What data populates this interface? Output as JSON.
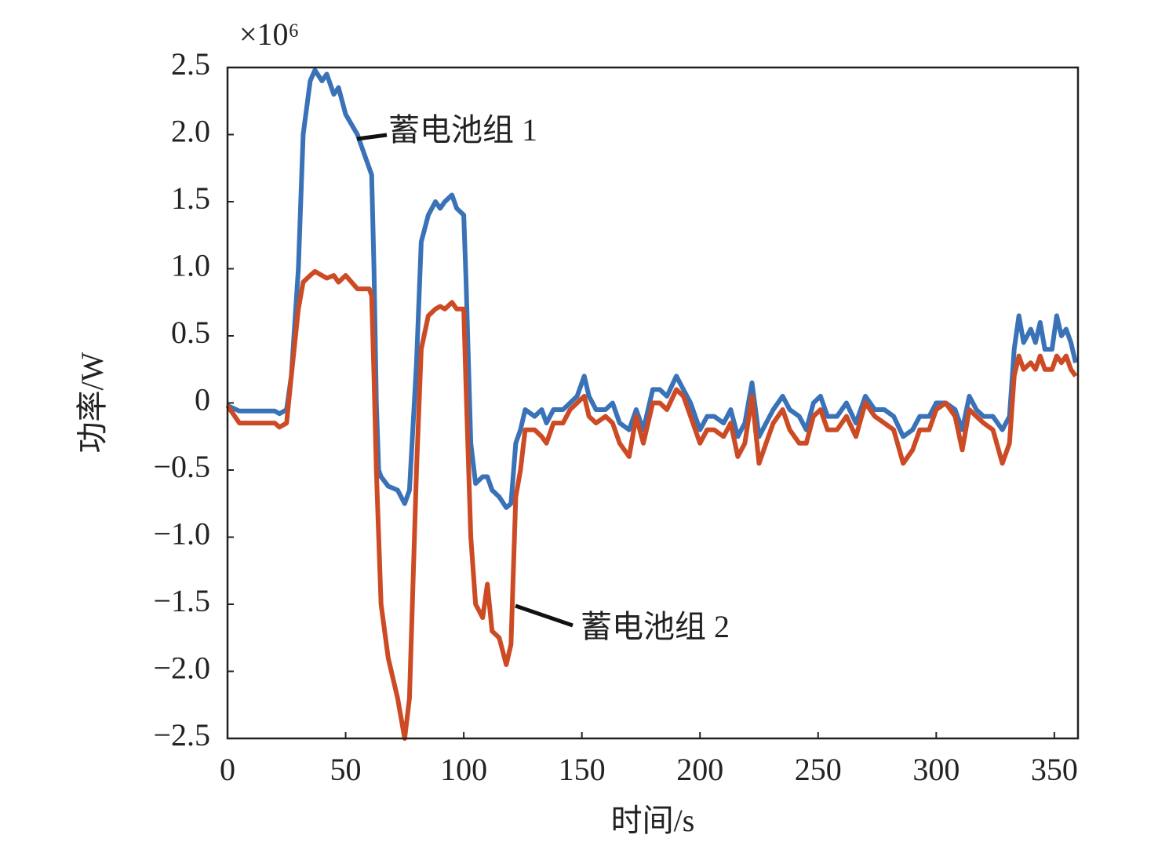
{
  "chart_data": {
    "type": "line",
    "y_multiplier": "×10⁶",
    "x_label": "时间/s",
    "y_label": "功率/W",
    "xlim": [
      0,
      360
    ],
    "ylim": [
      -2.5,
      2.5
    ],
    "xticks": [
      0,
      50,
      100,
      150,
      200,
      250,
      300,
      350
    ],
    "yticks": [
      2.5,
      {
        "value": 2,
        "label": "2.0"
      },
      1.5,
      {
        "value": 1,
        "label": "1.0"
      },
      0.5,
      0,
      {
        "value": -0.5,
        "label": "−0.5"
      },
      {
        "value": -1,
        "label": "−1.0"
      },
      {
        "value": -1.5,
        "label": "−1.5"
      },
      {
        "value": -2,
        "label": "−2.0"
      },
      {
        "value": -2.5,
        "label": "−2.5"
      }
    ],
    "x": [
      0,
      5,
      20,
      22,
      25,
      27,
      30,
      32,
      35,
      37,
      40,
      42,
      45,
      47,
      50,
      55,
      58,
      60,
      61,
      62,
      63,
      64,
      65,
      68,
      72,
      75,
      77,
      80,
      82,
      85,
      88,
      90,
      92,
      95,
      97,
      100,
      101,
      103,
      105,
      108,
      110,
      112,
      115,
      118,
      120,
      122,
      124,
      126,
      130,
      133,
      135,
      138,
      142,
      145,
      148,
      151,
      153,
      156,
      160,
      163,
      166,
      170,
      173,
      176,
      180,
      183,
      186,
      190,
      193,
      196,
      200,
      203,
      206,
      210,
      213,
      216,
      219,
      222,
      225,
      228,
      231,
      235,
      238,
      242,
      245,
      248,
      251,
      254,
      258,
      262,
      266,
      270,
      274,
      278,
      282,
      286,
      290,
      293,
      297,
      300,
      304,
      308,
      311,
      314,
      317,
      320,
      324,
      328,
      331,
      333,
      335,
      337,
      340,
      342,
      344,
      346,
      349,
      351,
      353,
      355,
      357,
      359
    ],
    "series": [
      {
        "name": "蓄电池组 1",
        "color": "#3a72b8",
        "values": [
          -0.02,
          -0.06,
          -0.06,
          -0.08,
          -0.05,
          0.2,
          1.0,
          2.0,
          2.4,
          2.48,
          2.4,
          2.45,
          2.3,
          2.35,
          2.15,
          2.0,
          1.85,
          1.75,
          1.7,
          1.0,
          0,
          -0.5,
          -0.55,
          -0.62,
          -0.65,
          -0.75,
          -0.65,
          0.3,
          1.2,
          1.4,
          1.5,
          1.45,
          1.5,
          1.55,
          1.45,
          1.4,
          0.9,
          -0.3,
          -0.6,
          -0.55,
          -0.55,
          -0.65,
          -0.7,
          -0.78,
          -0.75,
          -0.3,
          -0.2,
          -0.05,
          -0.1,
          -0.05,
          -0.15,
          -0.05,
          -0.05,
          0.0,
          0.05,
          0.2,
          0.05,
          -0.05,
          -0.05,
          0.0,
          -0.15,
          -0.2,
          -0.05,
          -0.2,
          0.1,
          0.1,
          0.05,
          0.2,
          0.1,
          0.0,
          -0.2,
          -0.1,
          -0.1,
          -0.15,
          -0.05,
          -0.25,
          -0.15,
          0.15,
          -0.25,
          -0.15,
          -0.05,
          0.05,
          -0.05,
          -0.1,
          -0.2,
          0.0,
          0.05,
          -0.1,
          -0.1,
          0.0,
          -0.15,
          0.05,
          -0.05,
          -0.05,
          -0.1,
          -0.25,
          -0.2,
          -0.1,
          -0.1,
          0.0,
          0.0,
          -0.05,
          -0.2,
          0.05,
          -0.05,
          -0.1,
          -0.1,
          -0.2,
          -0.1,
          0.4,
          0.65,
          0.45,
          0.55,
          0.45,
          0.6,
          0.4,
          0.4,
          0.65,
          0.5,
          0.55,
          0.45,
          0.3
        ]
      },
      {
        "name": "蓄电池组 2",
        "color": "#cc4b25",
        "values": [
          -0.02,
          -0.15,
          -0.15,
          -0.18,
          -0.15,
          0.2,
          0.7,
          0.9,
          0.95,
          0.98,
          0.95,
          0.93,
          0.95,
          0.9,
          0.95,
          0.85,
          0.85,
          0.85,
          0.8,
          0.2,
          -0.5,
          -1.0,
          -1.5,
          -1.9,
          -2.2,
          -2.5,
          -2.2,
          -0.5,
          0.4,
          0.65,
          0.7,
          0.72,
          0.7,
          0.75,
          0.7,
          0.7,
          0.1,
          -1.0,
          -1.5,
          -1.6,
          -1.35,
          -1.7,
          -1.75,
          -1.95,
          -1.8,
          -0.7,
          -0.5,
          -0.2,
          -0.2,
          -0.25,
          -0.3,
          -0.15,
          -0.15,
          -0.05,
          0.0,
          0.05,
          -0.1,
          -0.15,
          -0.1,
          -0.15,
          -0.3,
          -0.4,
          -0.1,
          -0.3,
          0.0,
          0.0,
          -0.05,
          0.1,
          0.05,
          -0.1,
          -0.3,
          -0.2,
          -0.2,
          -0.25,
          -0.15,
          -0.4,
          -0.3,
          0.05,
          -0.45,
          -0.3,
          -0.15,
          -0.05,
          -0.2,
          -0.3,
          -0.3,
          -0.1,
          -0.05,
          -0.2,
          -0.2,
          -0.1,
          -0.25,
          0.0,
          -0.1,
          -0.15,
          -0.2,
          -0.45,
          -0.35,
          -0.2,
          -0.2,
          -0.05,
          0.0,
          -0.1,
          -0.35,
          -0.05,
          -0.1,
          -0.15,
          -0.2,
          -0.45,
          -0.3,
          0.2,
          0.35,
          0.25,
          0.3,
          0.25,
          0.35,
          0.25,
          0.25,
          0.35,
          0.3,
          0.35,
          0.25,
          0.2
        ]
      }
    ]
  }
}
